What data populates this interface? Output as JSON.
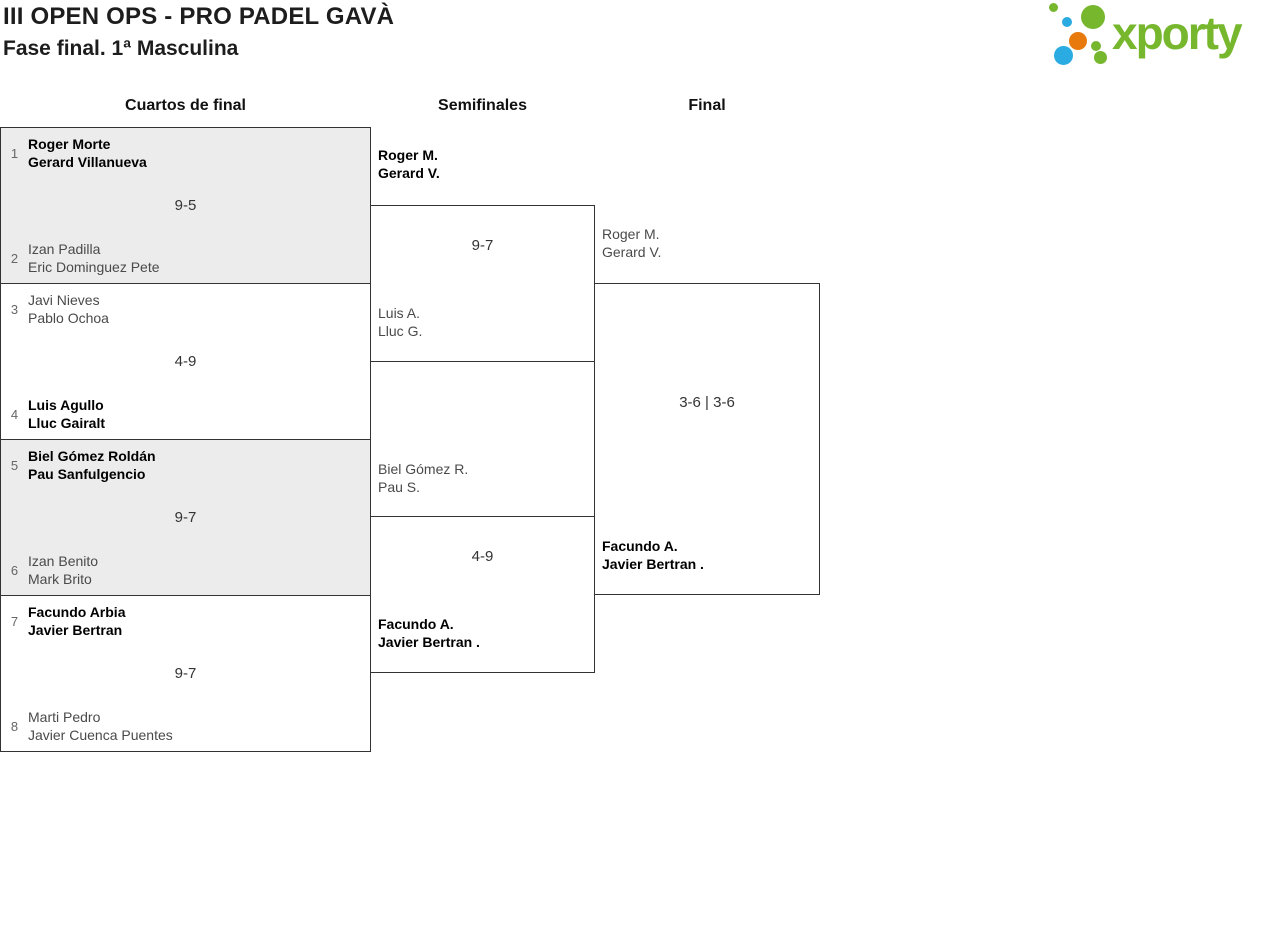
{
  "header": {
    "title": "III OPEN OPS - PRO PADEL GAVÀ",
    "subtitle": "Fase final. 1ª Masculina"
  },
  "logo": {
    "brand": "xporty",
    "colors": {
      "green": "#76b72e",
      "blue": "#2aabe2",
      "orange": "#e8790c"
    }
  },
  "bracket": {
    "rounds": [
      {
        "label": "Cuartos de final"
      },
      {
        "label": "Semifinales"
      },
      {
        "label": "Final"
      }
    ],
    "quarterfinals": [
      {
        "seed_top": "1",
        "team_top": [
          "Roger Morte",
          "Gerard Villanueva"
        ],
        "top_winner": true,
        "score": "9-5",
        "seed_bottom": "2",
        "team_bottom": [
          "Izan Padilla",
          "Eric Dominguez Pete"
        ],
        "bottom_winner": false
      },
      {
        "seed_top": "3",
        "team_top": [
          "Javi Nieves",
          "Pablo Ochoa"
        ],
        "top_winner": false,
        "score": "4-9",
        "seed_bottom": "4",
        "team_bottom": [
          "Luis Agullo",
          "Lluc Gairalt"
        ],
        "bottom_winner": true
      },
      {
        "seed_top": "5",
        "team_top": [
          "Biel Gómez Roldán",
          "Pau Sanfulgencio"
        ],
        "top_winner": true,
        "score": "9-7",
        "seed_bottom": "6",
        "team_bottom": [
          "Izan Benito",
          "Mark Brito"
        ],
        "bottom_winner": false
      },
      {
        "seed_top": "7",
        "team_top": [
          "Facundo Arbia",
          "Javier Bertran"
        ],
        "top_winner": true,
        "score": "9-7",
        "seed_bottom": "8",
        "team_bottom": [
          "Marti Pedro",
          "Javier Cuenca Puentes"
        ],
        "bottom_winner": false
      }
    ],
    "semifinals": [
      {
        "team_top": [
          "Roger M.",
          "Gerard V."
        ],
        "top_winner": true,
        "score": "9-7",
        "team_bottom": [
          "Luis A.",
          "Lluc G."
        ],
        "bottom_winner": false
      },
      {
        "team_top": [
          "Biel Gómez R.",
          "Pau S."
        ],
        "top_winner": false,
        "score": "4-9",
        "team_bottom": [
          "Facundo A.",
          "Javier Bertran ."
        ],
        "bottom_winner": true
      }
    ],
    "final": {
      "team_top": [
        "Roger M.",
        "Gerard V."
      ],
      "top_winner": false,
      "score": "3-6 | 3-6",
      "team_bottom": [
        "Facundo A.",
        "Javier Bertran ."
      ],
      "bottom_winner": true
    }
  }
}
